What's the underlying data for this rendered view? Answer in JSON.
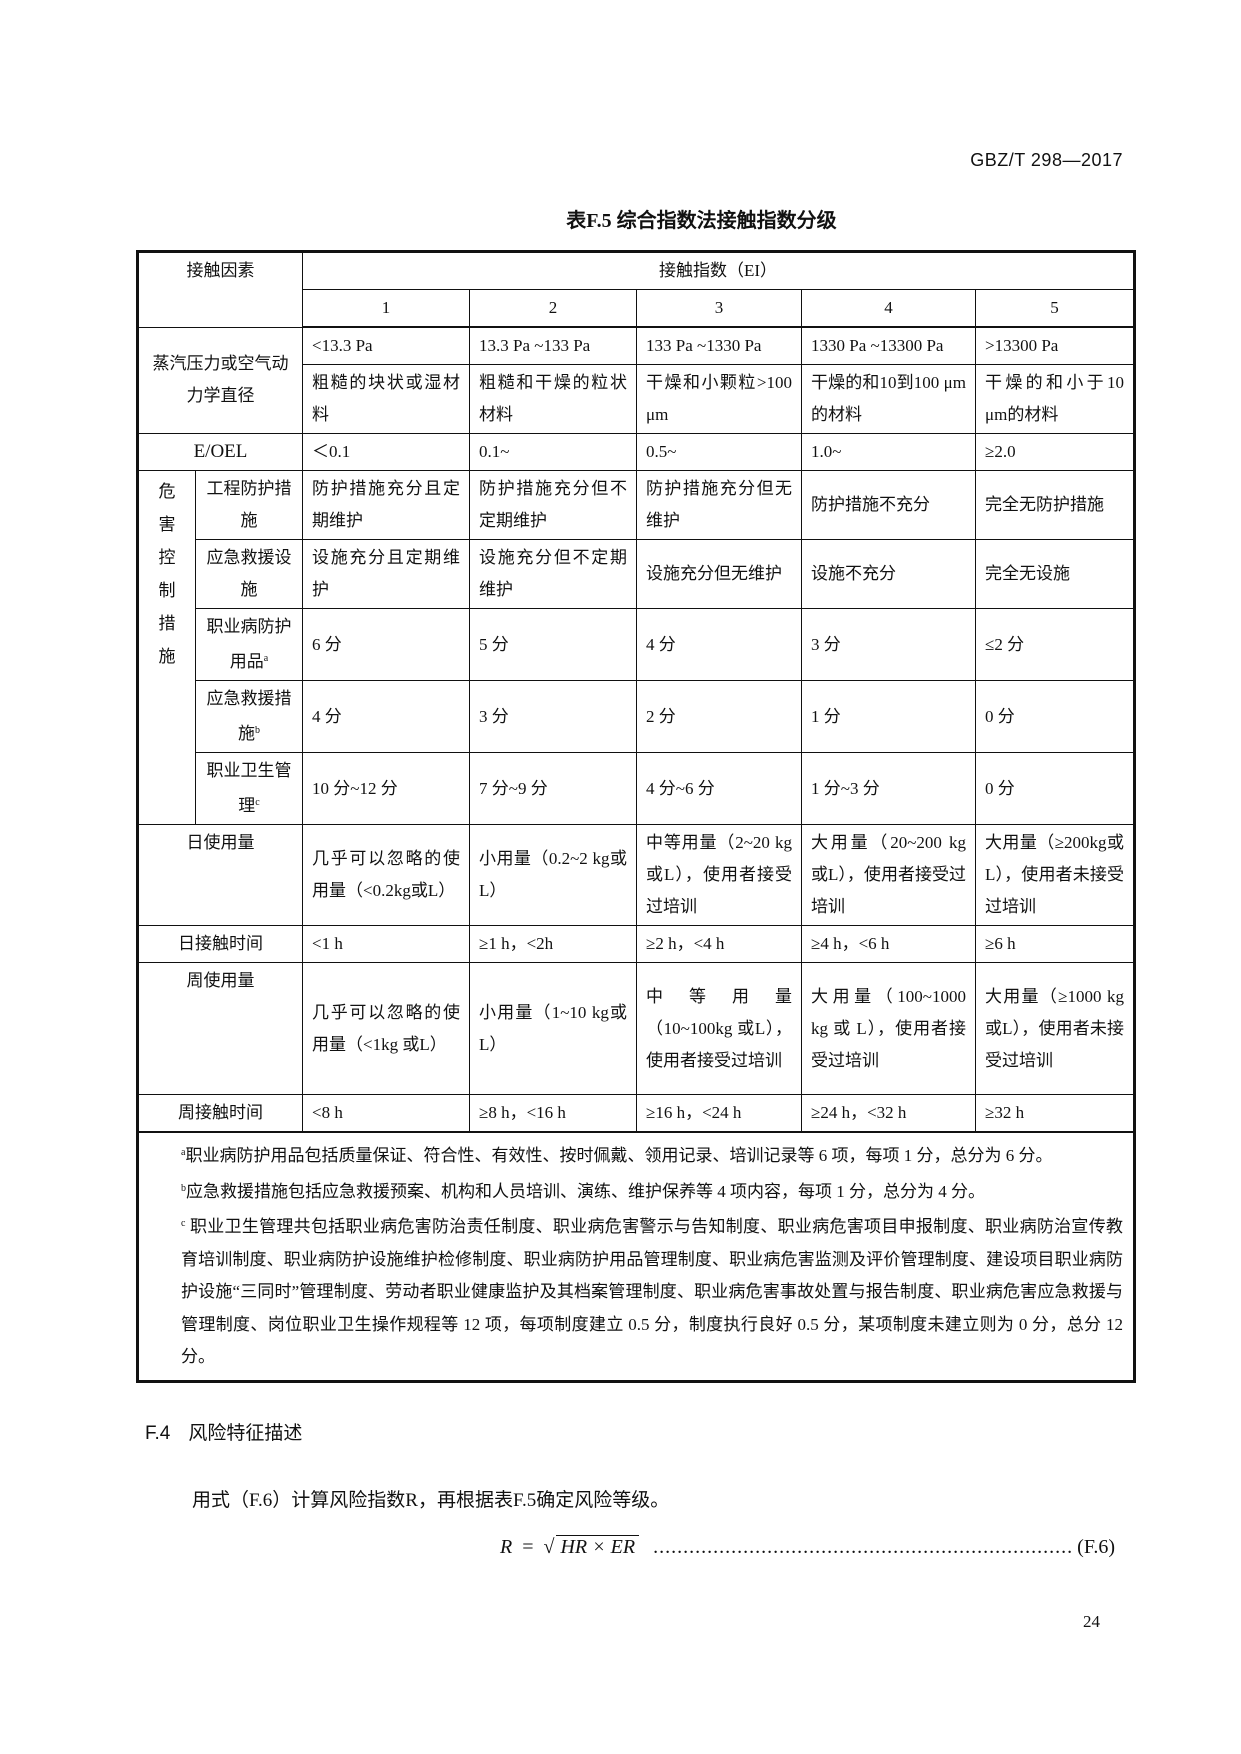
{
  "header_code": "GBZ/T 298—2017",
  "table": {
    "title": "表F.5   综合指数法接触指数分级",
    "head": {
      "factor": "接触因素",
      "ei": "接触指数（EI）",
      "levels": [
        "1",
        "2",
        "3",
        "4",
        "5"
      ]
    },
    "vapor": {
      "label": "蒸汽压力或空气动力学直径",
      "pressure": [
        "<13.3 Pa",
        "13.3 Pa ~133 Pa",
        "133 Pa ~1330 Pa",
        "1330 Pa ~13300 Pa",
        ">13300 Pa"
      ],
      "material": [
        "粗糙的块状或湿材料",
        "粗糙和干燥的粒状材料",
        "干燥和小颗粒>100 μm",
        "干燥的和10到100 μm的材料",
        "干燥的和小于10 μm的材料"
      ]
    },
    "eoel": {
      "label": "E/OEL",
      "values": [
        "＜0.1",
        "0.1~",
        "0.5~",
        "1.0~",
        "≥2.0"
      ]
    },
    "hazard_control": {
      "label": "危害控制措施",
      "items": [
        {
          "label": "工程防护措施",
          "sup": "",
          "values": [
            "防护措施充分且定期维护",
            "防护措施充分但不定期维护",
            "防护措施充分但无维护",
            "防护措施不充分",
            "完全无防护措施"
          ]
        },
        {
          "label": "应急救援设施",
          "sup": "",
          "values": [
            "设施充分且定期维护",
            "设施充分但不定期维护",
            "设施充分但无维护",
            "设施不充分",
            "完全无设施"
          ]
        },
        {
          "label": "职业病防护用品",
          "sup": "a",
          "values": [
            "6 分",
            "5 分",
            "4 分",
            "3 分",
            "≤2 分"
          ]
        },
        {
          "label": "应急救援措施",
          "sup": "b",
          "values": [
            "4 分",
            "3 分",
            "2 分",
            "1 分",
            "0 分"
          ]
        },
        {
          "label": "职业卫生管理",
          "sup": "c",
          "values": [
            "10 分~12 分",
            "7 分~9 分",
            "4 分~6 分",
            "1 分~3 分",
            "0 分"
          ]
        }
      ]
    },
    "daily_use": {
      "label": "日使用量",
      "values": [
        "几乎可以忽略的使用量（<0.2kg或L）",
        "小用量（0.2~2 kg或L）",
        "中等用量（2~20 kg或L），使用者接受过培训",
        "大用量（20~200 kg或L），使用者接受过培训",
        "大用量（≥200kg或L），使用者未接受过培训"
      ]
    },
    "daily_time": {
      "label": "日接触时间",
      "values": [
        "<1 h",
        "≥1 h，<2h",
        "≥2 h，<4 h",
        "≥4 h，<6 h",
        "≥6 h"
      ]
    },
    "weekly_use": {
      "label": "周使用量",
      "values": [
        "几乎可以忽略的使用量（<1kg 或L）",
        "小用量（1~10 kg或L）",
        "中等用量（10~100kg 或L），使用者接受过培训",
        "大用量（100~1000 kg 或 L），使用者接受过培训",
        "大用量（≥1000 kg或L），使用者未接受过培训"
      ]
    },
    "weekly_time": {
      "label": "周接触时间",
      "values": [
        "<8 h",
        "≥8 h，<16 h",
        "≥16 h，<24 h",
        "≥24 h，<32 h",
        "≥32 h"
      ]
    },
    "notes": [
      {
        "sup": "a",
        "text": "职业病防护用品包括质量保证、符合性、有效性、按时佩戴、领用记录、培训记录等 6 项，每项 1 分，总分为 6 分。"
      },
      {
        "sup": "b",
        "text": "应急救援措施包括应急救援预案、机构和人员培训、演练、维护保养等 4 项内容，每项 1 分，总分为 4 分。"
      },
      {
        "sup": "c",
        "text": " 职业卫生管理共包括职业病危害防治责任制度、职业病危害警示与告知制度、职业病危害项目申报制度、职业病防治宣传教育培训制度、职业病防护设施维护检修制度、职业病防护用品管理制度、职业病危害监测及评价管理制度、建设项目职业病防护设施“三同时”管理制度、劳动者职业健康监护及其档案管理制度、职业病危害事故处置与报告制度、职业病危害应急救援与管理制度、岗位职业卫生操作规程等 12 项，每项制度建立 0.5 分，制度执行良好 0.5 分，某项制度未建立则为 0 分，总分 12 分。"
      }
    ]
  },
  "section": {
    "number": "F.4",
    "title": "风险特征描述"
  },
  "paragraph": "用式（F.6）计算风险指数R，再根据表F.5确定风险等级。",
  "formula": {
    "lhs": "R",
    "eq": "=",
    "rhs": "HR × ER",
    "number": "(F.6)"
  },
  "page_number": "24"
}
